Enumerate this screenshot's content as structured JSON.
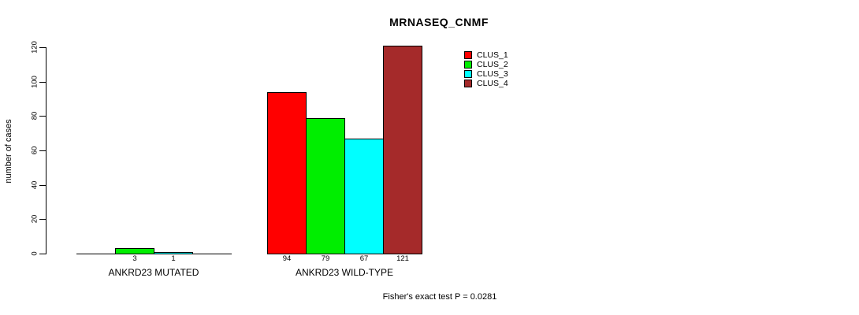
{
  "chart_data": {
    "type": "bar",
    "title": "MRNASEQ_CNMF",
    "ylabel": "number of cases",
    "xlabel": "",
    "note": "Fisher's exact test P = 0.0281",
    "ylim": [
      0,
      120
    ],
    "y_ticks": [
      0,
      20,
      40,
      60,
      80,
      100,
      120
    ],
    "grid": false,
    "legend_position": "top-right",
    "legend": [
      {
        "name": "CLUS_1",
        "color": "#FF0000"
      },
      {
        "name": "CLUS_2",
        "color": "#00EE00"
      },
      {
        "name": "CLUS_3",
        "color": "#00FFFF"
      },
      {
        "name": "CLUS_4",
        "color": "#A52A2A"
      }
    ],
    "categories": [
      "ANKRD23 MUTATED",
      "ANKRD23 WILD-TYPE"
    ],
    "groups": [
      {
        "label": "ANKRD23 MUTATED",
        "values": [
          0,
          3,
          1,
          0
        ],
        "bar_labels": [
          "",
          "3",
          "1",
          ""
        ]
      },
      {
        "label": "ANKRD23 WILD-TYPE",
        "values": [
          94,
          79,
          67,
          121
        ],
        "bar_labels": [
          "94",
          "79",
          "67",
          "121"
        ]
      }
    ]
  }
}
